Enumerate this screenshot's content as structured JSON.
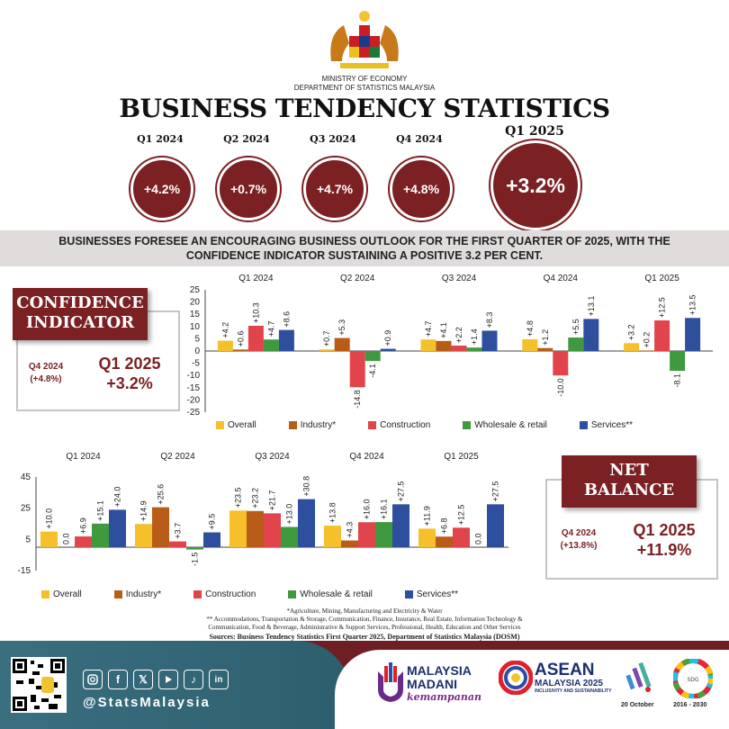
{
  "header": {
    "ministry": "MINISTRY OF ECONOMY",
    "department": "DEPARTMENT OF STATISTICS MALAYSIA",
    "title": "BUSINESS TENDENCY STATISTICS"
  },
  "quarters": [
    {
      "label": "Q1 2024",
      "value": "+4.2%"
    },
    {
      "label": "Q2 2024",
      "value": "+0.7%"
    },
    {
      "label": "Q3 2024",
      "value": "+4.7%"
    },
    {
      "label": "Q4 2024",
      "value": "+4.8%"
    },
    {
      "label": "Q1 2025",
      "value": "+3.2%"
    }
  ],
  "banner": {
    "line1": "BUSINESSES FORESEE AN ENCOURAGING BUSINESS OUTLOOK FOR THE FIRST QUARTER OF 2025, WITH THE",
    "line2": "CONFIDENCE INDICATOR SUSTAINING A POSITIVE 3.2 PER CENT."
  },
  "confidence_panel": {
    "title_line1": "CONFIDENCE",
    "title_line2": "INDICATOR",
    "prev_label": "Q4 2024",
    "prev_value": "(+4.8%)",
    "cur_label": "Q1 2025",
    "cur_value": "+3.2%"
  },
  "net_panel": {
    "title_line1": "NET",
    "title_line2": "BALANCE",
    "prev_label": "Q4 2024",
    "prev_value": "(+13.8%)",
    "cur_label": "Q1 2025",
    "cur_value": "+11.9%"
  },
  "legend": [
    "Overall",
    "Industry*",
    "Construction",
    "Wholesale & retail",
    "Services**"
  ],
  "colors": {
    "overall": "#f5c02c",
    "industry": "#b85c17",
    "construction": "#e2444b",
    "wholesale": "#3f9a3f",
    "services": "#2e4e9e",
    "maroon": "#7b2023"
  },
  "chart_data": [
    {
      "type": "bar",
      "categories": [
        "Q1 2024",
        "Q2 2024",
        "Q3 2024",
        "Q4 2024",
        "Q1 2025"
      ],
      "series": [
        {
          "name": "Overall",
          "values": [
            4.2,
            0.7,
            4.7,
            4.8,
            3.2
          ],
          "labels": [
            "+4.2",
            "+0.7",
            "+4.7",
            "+4.8",
            "+3.2"
          ]
        },
        {
          "name": "Industry*",
          "values": [
            0.6,
            5.3,
            4.1,
            1.2,
            0.2
          ],
          "labels": [
            "+0.6",
            "+5.3",
            "+4.1",
            "+1.2",
            "+0.2"
          ]
        },
        {
          "name": "Construction",
          "values": [
            10.3,
            -14.8,
            2.2,
            -10.0,
            12.5
          ],
          "labels": [
            "+10.3",
            "-14.8",
            "+2.2",
            "-10.0",
            "+12.5"
          ]
        },
        {
          "name": "Wholesale & retail",
          "values": [
            4.7,
            -4.1,
            1.4,
            5.5,
            -8.1
          ],
          "labels": [
            "+4.7",
            "-4.1",
            "+1.4",
            "+5.5",
            "-8.1"
          ]
        },
        {
          "name": "Services**",
          "values": [
            8.6,
            0.9,
            8.3,
            13.1,
            13.5
          ],
          "labels": [
            "+8.6",
            "+0.9",
            "+8.3",
            "+13.1",
            "+13.5"
          ]
        }
      ],
      "ylim": [
        -25,
        25
      ],
      "yticks": [
        "-25",
        "-20",
        "-15",
        "-10",
        "-5",
        "0",
        "5",
        "10",
        "15",
        "20",
        "25"
      ]
    },
    {
      "type": "bar",
      "categories": [
        "Q1 2024",
        "Q2 2024",
        "Q3 2024",
        "Q4 2024",
        "Q1 2025"
      ],
      "series": [
        {
          "name": "Overall",
          "values": [
            10.0,
            14.9,
            23.5,
            13.8,
            11.9
          ],
          "labels": [
            "+10.0",
            "+14.9",
            "+23.5",
            "+13.8",
            "+11.9"
          ]
        },
        {
          "name": "Industry*",
          "values": [
            0.0,
            25.6,
            23.2,
            4.3,
            6.8
          ],
          "labels": [
            "0.0",
            "+25.6",
            "+23.2",
            "+4.3",
            "+6.8"
          ]
        },
        {
          "name": "Construction",
          "values": [
            6.9,
            3.7,
            21.7,
            16.0,
            12.5
          ],
          "labels": [
            "+6.9",
            "+3.7",
            "+21.7",
            "+16.0",
            "+12.5"
          ]
        },
        {
          "name": "Wholesale & retail",
          "values": [
            15.1,
            -1.5,
            13.0,
            16.1,
            0.0
          ],
          "labels": [
            "+15.1",
            "-1.5",
            "+13.0",
            "+16.1",
            "0.0"
          ]
        },
        {
          "name": "Services**",
          "values": [
            24.0,
            9.5,
            30.8,
            27.5,
            27.5
          ],
          "labels": [
            "+24.0",
            "+9.5",
            "+30.8",
            "+27.5",
            "+27.5"
          ]
        }
      ],
      "ylim": [
        -15,
        45
      ],
      "yticks": [
        "-15",
        "5",
        "25",
        "45"
      ]
    }
  ],
  "footnotes": {
    "line1": "*Agriculture, Mining, Manufacturing and  Electricity & Water",
    "line2": "** Accommodations, Transportation & Storage, Communication, Finance, Insurance, Real Estate, Information Technology &",
    "line3": "Communication, Food & Beverage, Administrative & Support Services, Professional, Health, Education and Other Services",
    "source": "Sources: Business Tendency Statistics First Quarter 2025, Department of Statistics Malaysia (DOSM)"
  },
  "footer": {
    "handle": "@StatsMalaysia",
    "social": [
      "instagram-icon",
      "facebook-icon",
      "x-icon",
      "youtube-icon",
      "tiktok-icon",
      "linkedin-icon"
    ],
    "madani_line1": "MALAYSIA",
    "madani_line2": "MADANI",
    "madani_line3": "kemampanan",
    "asean_line1": "ASEAN",
    "asean_line2": "MALAYSIA 2025",
    "asean_line3": "INCLUSIVITY AND SUSTAINABILITY",
    "stats_day": "20 October",
    "sdg_years": "2016 - 2030"
  }
}
